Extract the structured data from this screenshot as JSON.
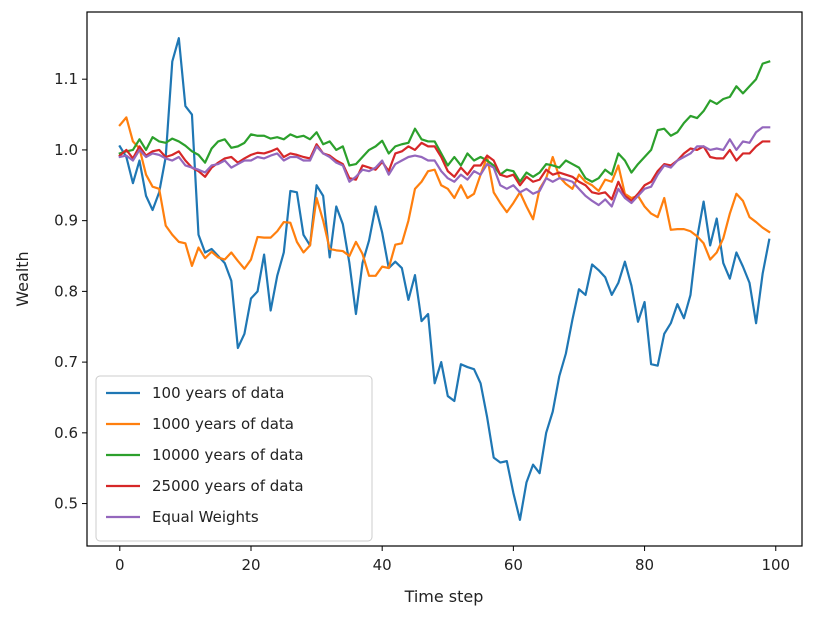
{
  "chart_data": {
    "type": "line",
    "title": "",
    "xlabel": "Time step",
    "ylabel": "Wealth",
    "xlim": [
      -5,
      104
    ],
    "ylim": [
      0.44,
      1.195
    ],
    "xticks": [
      0,
      20,
      40,
      60,
      80,
      100
    ],
    "yticks": [
      0.5,
      0.6,
      0.7,
      0.8,
      0.9,
      1.0,
      1.1
    ],
    "xtick_labels": [
      "0",
      "20",
      "40",
      "60",
      "80",
      "100"
    ],
    "ytick_labels": [
      "0.5",
      "0.6",
      "0.7",
      "0.8",
      "0.9",
      "1.0",
      "1.1"
    ],
    "grid": false,
    "legend_position": "lower-left",
    "series": [
      {
        "name": "100 years of data",
        "color": "#1f77b4",
        "x": [
          0,
          1,
          2,
          3,
          4,
          5,
          6,
          7,
          8,
          9,
          10,
          11,
          12,
          13,
          14,
          15,
          16,
          17,
          18,
          19,
          20,
          21,
          22,
          23,
          24,
          25,
          26,
          27,
          28,
          29,
          30,
          31,
          32,
          33,
          34,
          35,
          36,
          37,
          38,
          39,
          40,
          41,
          42,
          43,
          44,
          45,
          46,
          47,
          48,
          49,
          50,
          51,
          52,
          53,
          54,
          55,
          56,
          57,
          58,
          59,
          60,
          61,
          62,
          63,
          64,
          65,
          66,
          67,
          68,
          69,
          70,
          71,
          72,
          73,
          74,
          75,
          76,
          77,
          78,
          79,
          80,
          81,
          82,
          83,
          84,
          85,
          86,
          87,
          88,
          89,
          90,
          91,
          92,
          93,
          94,
          95,
          96,
          97,
          98,
          99
        ],
        "values": [
          1.005,
          0.99,
          0.953,
          0.985,
          0.935,
          0.915,
          0.94,
          0.99,
          1.125,
          1.158,
          1.062,
          1.05,
          0.88,
          0.855,
          0.86,
          0.85,
          0.84,
          0.815,
          0.72,
          0.74,
          0.79,
          0.8,
          0.852,
          0.773,
          0.822,
          0.855,
          0.942,
          0.94,
          0.88,
          0.865,
          0.95,
          0.935,
          0.848,
          0.92,
          0.895,
          0.84,
          0.768,
          0.84,
          0.872,
          0.92,
          0.883,
          0.833,
          0.842,
          0.833,
          0.788,
          0.823,
          0.758,
          0.768,
          0.67,
          0.7,
          0.652,
          0.645,
          0.697,
          0.693,
          0.69,
          0.67,
          0.622,
          0.565,
          0.558,
          0.56,
          0.515,
          0.477,
          0.53,
          0.555,
          0.543,
          0.6,
          0.63,
          0.68,
          0.712,
          0.76,
          0.803,
          0.795,
          0.838,
          0.83,
          0.82,
          0.795,
          0.812,
          0.842,
          0.808,
          0.757,
          0.785,
          0.697,
          0.695,
          0.74,
          0.755,
          0.782,
          0.762,
          0.795,
          0.875,
          0.927,
          0.865,
          0.903,
          0.84,
          0.818,
          0.855,
          0.835,
          0.812,
          0.755,
          0.825,
          0.873
        ]
      },
      {
        "name": "1000 years of data",
        "color": "#ff7f0e",
        "x": [
          0,
          1,
          2,
          3,
          4,
          5,
          6,
          7,
          8,
          9,
          10,
          11,
          12,
          13,
          14,
          15,
          16,
          17,
          18,
          19,
          20,
          21,
          22,
          23,
          24,
          25,
          26,
          27,
          28,
          29,
          30,
          31,
          32,
          33,
          34,
          35,
          36,
          37,
          38,
          39,
          40,
          41,
          42,
          43,
          44,
          45,
          46,
          47,
          48,
          49,
          50,
          51,
          52,
          53,
          54,
          55,
          56,
          57,
          58,
          59,
          60,
          61,
          62,
          63,
          64,
          65,
          66,
          67,
          68,
          69,
          70,
          71,
          72,
          73,
          74,
          75,
          76,
          77,
          78,
          79,
          80,
          81,
          82,
          83,
          84,
          85,
          86,
          87,
          88,
          89,
          90,
          91,
          92,
          93,
          94,
          95,
          96,
          97,
          98,
          99
        ],
        "values": [
          1.035,
          1.046,
          1.012,
          1.002,
          0.965,
          0.948,
          0.945,
          0.893,
          0.88,
          0.87,
          0.868,
          0.836,
          0.862,
          0.847,
          0.856,
          0.848,
          0.845,
          0.855,
          0.843,
          0.832,
          0.845,
          0.877,
          0.876,
          0.876,
          0.885,
          0.898,
          0.897,
          0.87,
          0.855,
          0.865,
          0.932,
          0.9,
          0.86,
          0.858,
          0.857,
          0.85,
          0.87,
          0.853,
          0.822,
          0.822,
          0.835,
          0.833,
          0.866,
          0.868,
          0.9,
          0.945,
          0.955,
          0.97,
          0.972,
          0.95,
          0.945,
          0.932,
          0.95,
          0.932,
          0.938,
          0.965,
          0.99,
          0.94,
          0.925,
          0.912,
          0.925,
          0.94,
          0.92,
          0.902,
          0.945,
          0.96,
          0.99,
          0.962,
          0.952,
          0.945,
          0.965,
          0.955,
          0.95,
          0.942,
          0.958,
          0.955,
          0.978,
          0.938,
          0.932,
          0.935,
          0.92,
          0.91,
          0.905,
          0.932,
          0.887,
          0.888,
          0.888,
          0.885,
          0.878,
          0.868,
          0.845,
          0.855,
          0.875,
          0.91,
          0.938,
          0.928,
          0.905,
          0.898,
          0.89,
          0.884
        ]
      },
      {
        "name": "10000 years of data",
        "color": "#2ca02c",
        "x": [
          0,
          1,
          2,
          3,
          4,
          5,
          6,
          7,
          8,
          9,
          10,
          11,
          12,
          13,
          14,
          15,
          16,
          17,
          18,
          19,
          20,
          21,
          22,
          23,
          24,
          25,
          26,
          27,
          28,
          29,
          30,
          31,
          32,
          33,
          34,
          35,
          36,
          37,
          38,
          39,
          40,
          41,
          42,
          43,
          44,
          45,
          46,
          47,
          48,
          49,
          50,
          51,
          52,
          53,
          54,
          55,
          56,
          57,
          58,
          59,
          60,
          61,
          62,
          63,
          64,
          65,
          66,
          67,
          68,
          69,
          70,
          71,
          72,
          73,
          74,
          75,
          76,
          77,
          78,
          79,
          80,
          81,
          82,
          83,
          84,
          85,
          86,
          87,
          88,
          89,
          90,
          91,
          92,
          93,
          94,
          95,
          96,
          97,
          98,
          99
        ],
        "values": [
          0.995,
          0.998,
          1.0,
          1.015,
          1.0,
          1.018,
          1.012,
          1.01,
          1.016,
          1.012,
          1.006,
          0.998,
          0.993,
          0.982,
          1.002,
          1.012,
          1.015,
          1.003,
          1.005,
          1.01,
          1.022,
          1.02,
          1.02,
          1.016,
          1.018,
          1.015,
          1.022,
          1.018,
          1.02,
          1.015,
          1.025,
          1.008,
          1.012,
          1.0,
          1.005,
          0.978,
          0.98,
          0.99,
          1.0,
          1.005,
          1.013,
          0.995,
          1.005,
          1.008,
          1.01,
          1.03,
          1.015,
          1.012,
          1.012,
          0.995,
          0.978,
          0.99,
          0.978,
          0.995,
          0.985,
          0.99,
          0.985,
          0.978,
          0.965,
          0.972,
          0.97,
          0.955,
          0.968,
          0.962,
          0.968,
          0.98,
          0.978,
          0.975,
          0.985,
          0.98,
          0.975,
          0.96,
          0.955,
          0.96,
          0.972,
          0.965,
          0.995,
          0.985,
          0.968,
          0.98,
          0.99,
          1.0,
          1.028,
          1.03,
          1.02,
          1.025,
          1.038,
          1.048,
          1.045,
          1.055,
          1.07,
          1.065,
          1.072,
          1.075,
          1.09,
          1.08,
          1.09,
          1.1,
          1.122,
          1.125
        ]
      },
      {
        "name": "25000 years of data",
        "color": "#d62728",
        "x": [
          0,
          1,
          2,
          3,
          4,
          5,
          6,
          7,
          8,
          9,
          10,
          11,
          12,
          13,
          14,
          15,
          16,
          17,
          18,
          19,
          20,
          21,
          22,
          23,
          24,
          25,
          26,
          27,
          28,
          29,
          30,
          31,
          32,
          33,
          34,
          35,
          36,
          37,
          38,
          39,
          40,
          41,
          42,
          43,
          44,
          45,
          46,
          47,
          48,
          49,
          50,
          51,
          52,
          53,
          54,
          55,
          56,
          57,
          58,
          59,
          60,
          61,
          62,
          63,
          64,
          65,
          66,
          67,
          68,
          69,
          70,
          71,
          72,
          73,
          74,
          75,
          76,
          77,
          78,
          79,
          80,
          81,
          82,
          83,
          84,
          85,
          86,
          87,
          88,
          89,
          90,
          91,
          92,
          93,
          94,
          95,
          96,
          97,
          98,
          99
        ],
        "values": [
          0.992,
          1.0,
          0.988,
          1.005,
          0.992,
          0.998,
          1.0,
          0.99,
          0.993,
          0.998,
          0.985,
          0.975,
          0.97,
          0.962,
          0.975,
          0.982,
          0.988,
          0.99,
          0.982,
          0.988,
          0.993,
          0.996,
          0.995,
          0.998,
          1.002,
          0.99,
          0.995,
          0.993,
          0.99,
          0.988,
          1.008,
          0.995,
          0.992,
          0.985,
          0.98,
          0.96,
          0.958,
          0.978,
          0.975,
          0.972,
          0.983,
          0.97,
          0.995,
          0.998,
          1.005,
          1.0,
          1.01,
          1.005,
          1.005,
          0.99,
          0.97,
          0.962,
          0.975,
          0.965,
          0.978,
          0.978,
          0.992,
          0.985,
          0.965,
          0.962,
          0.965,
          0.95,
          0.962,
          0.955,
          0.958,
          0.972,
          0.965,
          0.968,
          0.965,
          0.962,
          0.955,
          0.95,
          0.94,
          0.938,
          0.94,
          0.93,
          0.955,
          0.935,
          0.928,
          0.938,
          0.95,
          0.955,
          0.97,
          0.98,
          0.978,
          0.985,
          0.995,
          1.002,
          1.0,
          1.005,
          0.99,
          0.988,
          0.988,
          1.0,
          0.985,
          0.995,
          0.995,
          1.005,
          1.012,
          1.012
        ]
      },
      {
        "name": "Equal Weights",
        "color": "#9467bd",
        "x": [
          0,
          1,
          2,
          3,
          4,
          5,
          6,
          7,
          8,
          9,
          10,
          11,
          12,
          13,
          14,
          15,
          16,
          17,
          18,
          19,
          20,
          21,
          22,
          23,
          24,
          25,
          26,
          27,
          28,
          29,
          30,
          31,
          32,
          33,
          34,
          35,
          36,
          37,
          38,
          39,
          40,
          41,
          42,
          43,
          44,
          45,
          46,
          47,
          48,
          49,
          50,
          51,
          52,
          53,
          54,
          55,
          56,
          57,
          58,
          59,
          60,
          61,
          62,
          63,
          64,
          65,
          66,
          67,
          68,
          69,
          70,
          71,
          72,
          73,
          74,
          75,
          76,
          77,
          78,
          79,
          80,
          81,
          82,
          83,
          84,
          85,
          86,
          87,
          88,
          89,
          90,
          91,
          92,
          93,
          94,
          95,
          96,
          97,
          98,
          99
        ],
        "values": [
          0.99,
          0.992,
          0.985,
          1.0,
          0.99,
          0.995,
          0.993,
          0.988,
          0.985,
          0.99,
          0.978,
          0.975,
          0.972,
          0.968,
          0.978,
          0.98,
          0.985,
          0.975,
          0.98,
          0.985,
          0.985,
          0.99,
          0.988,
          0.992,
          0.995,
          0.985,
          0.99,
          0.99,
          0.985,
          0.985,
          1.005,
          0.995,
          0.99,
          0.982,
          0.978,
          0.955,
          0.962,
          0.972,
          0.97,
          0.975,
          0.985,
          0.965,
          0.98,
          0.985,
          0.99,
          0.992,
          0.99,
          0.985,
          0.985,
          0.97,
          0.96,
          0.955,
          0.965,
          0.958,
          0.97,
          0.965,
          0.98,
          0.975,
          0.95,
          0.945,
          0.95,
          0.94,
          0.945,
          0.938,
          0.942,
          0.96,
          0.955,
          0.96,
          0.958,
          0.955,
          0.945,
          0.935,
          0.928,
          0.922,
          0.93,
          0.92,
          0.945,
          0.932,
          0.925,
          0.935,
          0.945,
          0.948,
          0.965,
          0.978,
          0.975,
          0.985,
          0.99,
          0.995,
          1.005,
          1.005,
          1.0,
          1.002,
          1.0,
          1.015,
          1.0,
          1.012,
          1.01,
          1.025,
          1.032,
          1.032
        ]
      }
    ]
  }
}
